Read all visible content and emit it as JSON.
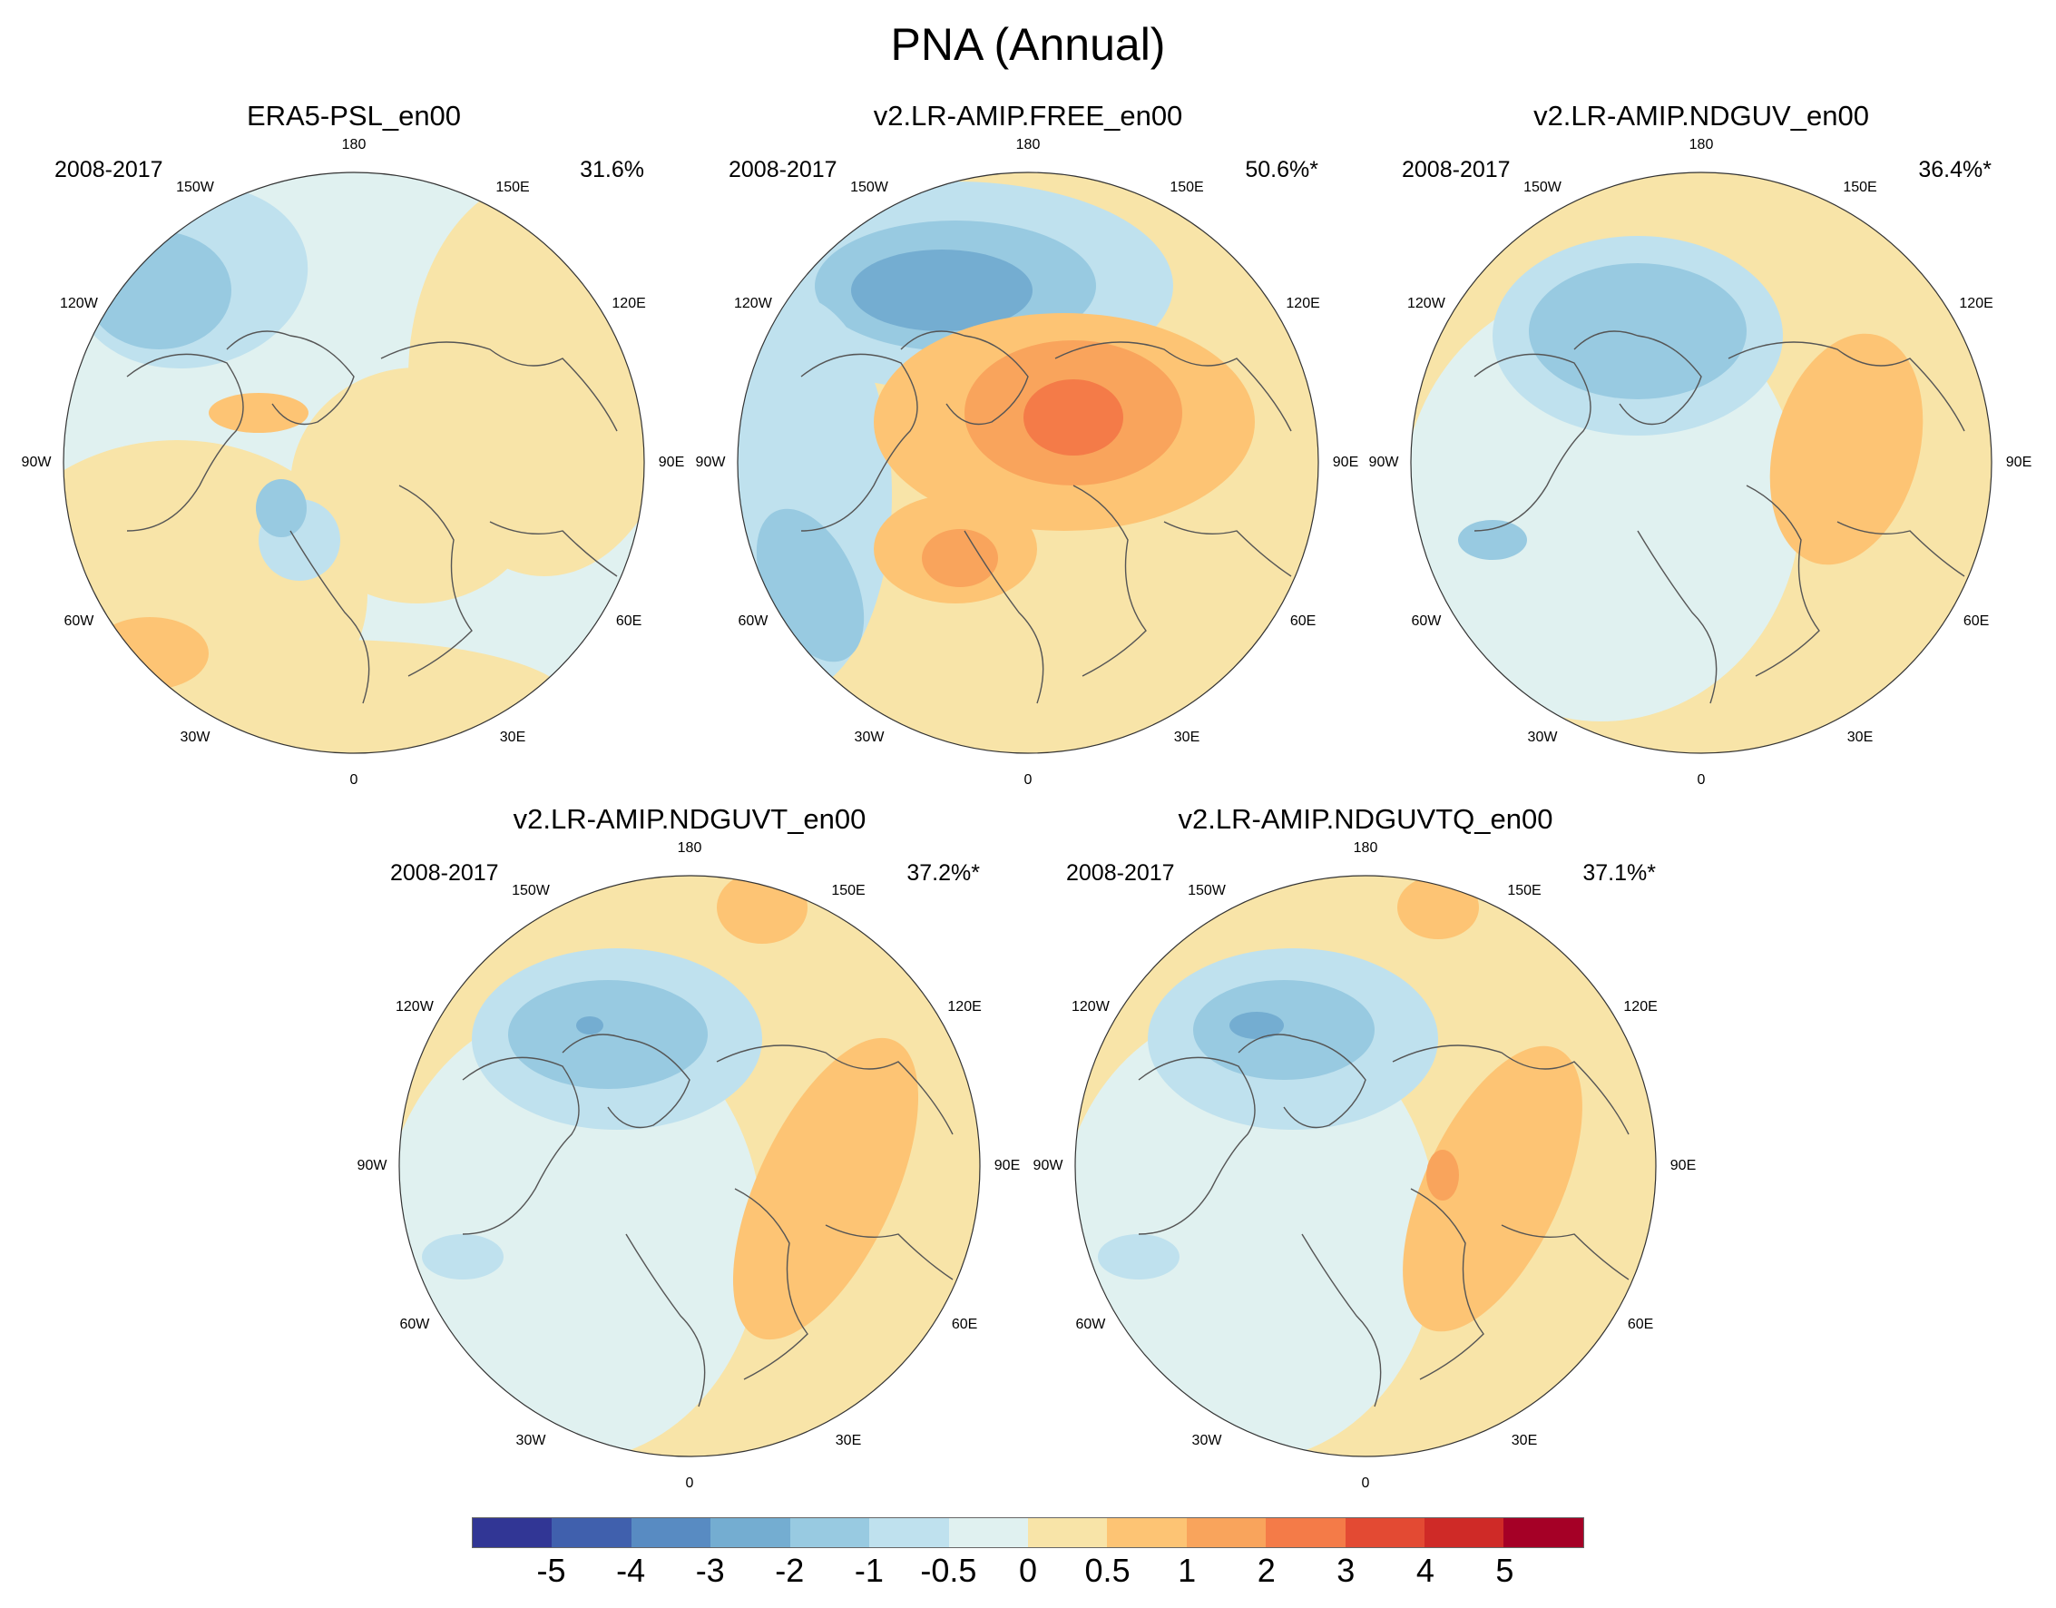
{
  "figure_title": "PNA (Annual)",
  "period": "2008-2017",
  "lon_labels": [
    "180",
    "150E",
    "120E",
    "90E",
    "60E",
    "30E",
    "0",
    "30W",
    "60W",
    "90W",
    "120W",
    "150W"
  ],
  "panels": [
    {
      "title": "ERA5-PSL_en00",
      "variance": "31.6%"
    },
    {
      "title": "v2.LR-AMIP.FREE_en00",
      "variance": "50.6%*"
    },
    {
      "title": "v2.LR-AMIP.NDGUV_en00",
      "variance": "36.4%*"
    },
    {
      "title": "v2.LR-AMIP.NDGUVT_en00",
      "variance": "37.2%*"
    },
    {
      "title": "v2.LR-AMIP.NDGUVTQ_en00",
      "variance": "37.1%*"
    }
  ],
  "colorbar": {
    "labels": [
      "-5",
      "-4",
      "-3",
      "-2",
      "-1",
      "-0.5",
      "0",
      "0.5",
      "1",
      "2",
      "3",
      "4",
      "5"
    ],
    "colors": [
      "#313695",
      "#4060ad",
      "#588bc2",
      "#74add1",
      "#98cae1",
      "#bfe1ee",
      "#e0f1f0",
      "#f8e4a8",
      "#fdc474",
      "#f9a45c",
      "#f47b48",
      "#e34a33",
      "#cf2a27",
      "#a50026"
    ]
  },
  "colors": {
    "ocean_light_blue": "#e0f1f0",
    "pos_weak": "#f8e4a8",
    "pos_mid": "#fdc474",
    "pos_strong": "#f9a45c",
    "pos_stronger": "#f47b48",
    "neg_weak": "#bfe1ee",
    "neg_mid": "#98cae1",
    "neg_strong": "#74add1",
    "coast": "#555555"
  }
}
